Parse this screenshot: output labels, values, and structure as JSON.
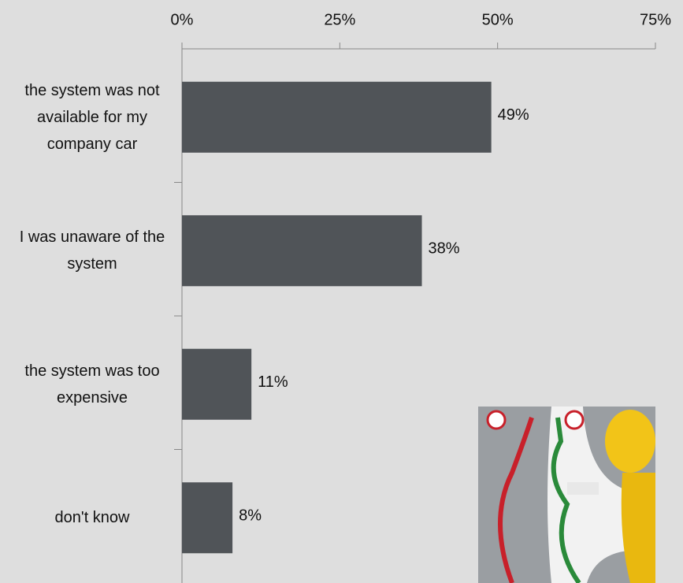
{
  "chart_data": {
    "type": "barh",
    "categories": [
      "the system was not available for my company car",
      "I was unaware of the system",
      "the system was too expensive",
      "don't know"
    ],
    "values": [
      49,
      38,
      11,
      8
    ],
    "value_labels": [
      "49%",
      "38%",
      "11%",
      "8%"
    ],
    "color": "#505458",
    "xlim": [
      0,
      75
    ],
    "xticks": [
      {
        "value": 0,
        "label": "0%"
      },
      {
        "value": 25,
        "label": "25%"
      },
      {
        "value": 50,
        "label": "50%"
      },
      {
        "value": 75,
        "label": "75%"
      }
    ]
  }
}
